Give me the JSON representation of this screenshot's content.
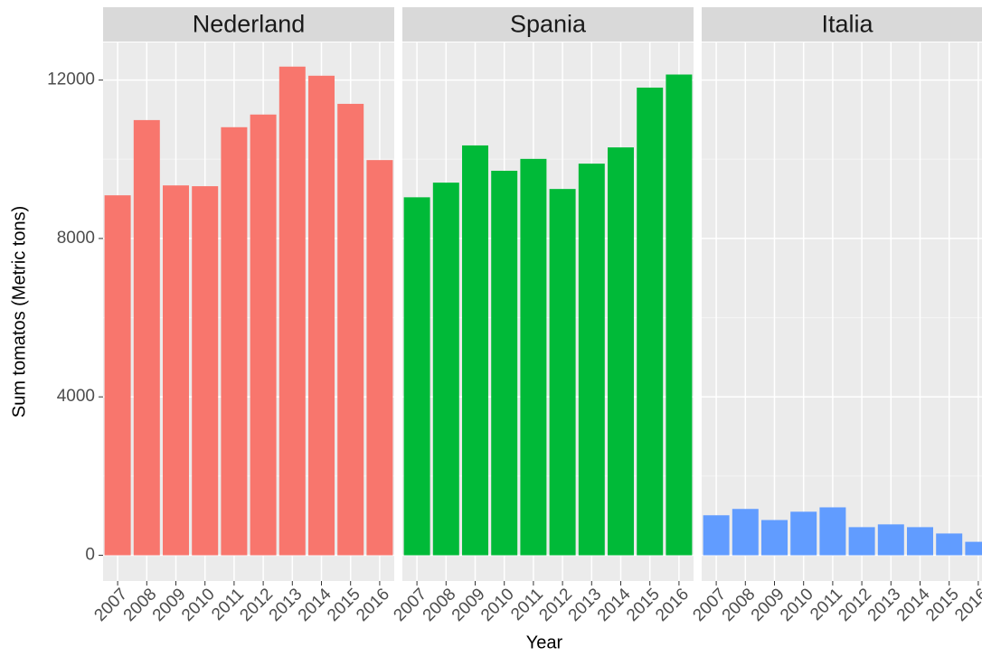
{
  "chart_data": {
    "type": "bar",
    "y_label": "Sum tomatos (Metric tons)",
    "x_label": "Year",
    "categories": [
      "2007",
      "2008",
      "2009",
      "2010",
      "2011",
      "2012",
      "2013",
      "2014",
      "2015",
      "2016"
    ],
    "panels": [
      {
        "title": "Nederland",
        "color": "#f8766d",
        "values": [
          9090,
          10990,
          9340,
          9320,
          10810,
          11130,
          12340,
          12110,
          11400,
          9980
        ]
      },
      {
        "title": "Spania",
        "color": "#00ba38",
        "values": [
          9040,
          9410,
          10350,
          9710,
          10010,
          9250,
          9890,
          10300,
          11810,
          12140
        ]
      },
      {
        "title": "Italia",
        "color": "#619cff",
        "values": [
          1010,
          1170,
          890,
          1100,
          1210,
          710,
          780,
          710,
          550,
          340
        ]
      }
    ],
    "ylim": [
      -650,
      12950
    ],
    "yticks": [
      0,
      4000,
      8000,
      12000
    ],
    "grid": true
  }
}
